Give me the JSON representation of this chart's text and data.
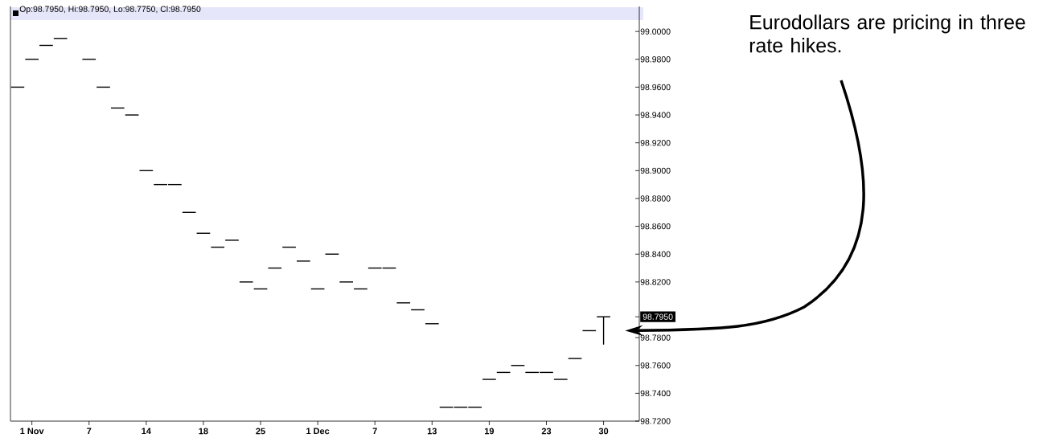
{
  "chart_data": {
    "type": "candlestick",
    "title": "Op:98.7950, Hi:98.7950, Lo:98.7750, Cl:98.7950",
    "categories": [
      null,
      "1 Nov",
      null,
      null,
      null,
      "7",
      null,
      null,
      null,
      "14",
      null,
      null,
      null,
      "18",
      null,
      null,
      null,
      "25",
      null,
      null,
      null,
      "1 Dec",
      null,
      null,
      null,
      "7",
      null,
      null,
      null,
      "13",
      null,
      null,
      null,
      "19",
      null,
      null,
      null,
      "23",
      null,
      null,
      null,
      "30"
    ],
    "ohlc": [
      [
        98.96,
        98.96,
        98.96,
        98.96
      ],
      [
        98.98,
        98.98,
        98.98,
        98.98
      ],
      [
        98.99,
        98.99,
        98.99,
        98.99
      ],
      [
        98.995,
        98.995,
        98.995,
        98.995
      ],
      null,
      [
        98.98,
        98.98,
        98.98,
        98.98
      ],
      [
        98.96,
        98.96,
        98.96,
        98.96
      ],
      [
        98.945,
        98.945,
        98.945,
        98.945
      ],
      [
        98.94,
        98.94,
        98.94,
        98.94
      ],
      [
        98.9,
        98.9,
        98.9,
        98.9
      ],
      [
        98.89,
        98.89,
        98.89,
        98.89
      ],
      [
        98.89,
        98.89,
        98.89,
        98.89
      ],
      [
        98.87,
        98.87,
        98.87,
        98.87
      ],
      [
        98.855,
        98.855,
        98.855,
        98.855
      ],
      [
        98.845,
        98.845,
        98.845,
        98.845
      ],
      [
        98.85,
        98.85,
        98.85,
        98.85
      ],
      [
        98.82,
        98.82,
        98.82,
        98.82
      ],
      [
        98.815,
        98.815,
        98.815,
        98.815
      ],
      [
        98.83,
        98.83,
        98.83,
        98.83
      ],
      [
        98.845,
        98.845,
        98.845,
        98.845
      ],
      [
        98.835,
        98.835,
        98.835,
        98.835
      ],
      [
        98.815,
        98.815,
        98.815,
        98.815
      ],
      [
        98.84,
        98.84,
        98.84,
        98.84
      ],
      [
        98.82,
        98.82,
        98.82,
        98.82
      ],
      [
        98.815,
        98.815,
        98.815,
        98.815
      ],
      [
        98.83,
        98.83,
        98.83,
        98.83
      ],
      [
        98.83,
        98.83,
        98.83,
        98.83
      ],
      [
        98.805,
        98.805,
        98.805,
        98.805
      ],
      [
        98.8,
        98.8,
        98.8,
        98.8
      ],
      [
        98.79,
        98.79,
        98.79,
        98.79
      ],
      [
        98.73,
        98.73,
        98.73,
        98.73
      ],
      [
        98.73,
        98.73,
        98.73,
        98.73
      ],
      [
        98.73,
        98.73,
        98.73,
        98.73
      ],
      [
        98.75,
        98.75,
        98.75,
        98.75
      ],
      [
        98.755,
        98.755,
        98.755,
        98.755
      ],
      [
        98.76,
        98.76,
        98.76,
        98.76
      ],
      [
        98.755,
        98.755,
        98.755,
        98.755
      ],
      [
        98.755,
        98.755,
        98.755,
        98.755
      ],
      [
        98.75,
        98.75,
        98.75,
        98.75
      ],
      [
        98.765,
        98.765,
        98.765,
        98.765
      ],
      [
        98.785,
        98.785,
        98.785,
        98.785
      ],
      [
        98.795,
        98.795,
        98.775,
        98.795
      ]
    ],
    "color": "#000000",
    "ylim": [
      98.72,
      99.018
    ],
    "yticks": [
      {
        "value": 98.72,
        "label": "98.7200"
      },
      {
        "value": 98.74,
        "label": "98.7400"
      },
      {
        "value": 98.76,
        "label": "98.7600"
      },
      {
        "value": 98.78,
        "label": "98.7800"
      },
      {
        "value": 98.795,
        "label": "98.7950"
      },
      {
        "value": 98.82,
        "label": "98.8200"
      },
      {
        "value": 98.84,
        "label": "98.8400"
      },
      {
        "value": 98.86,
        "label": "98.8600"
      },
      {
        "value": 98.88,
        "label": "98.8800"
      },
      {
        "value": 98.9,
        "label": "98.9000"
      },
      {
        "value": 98.92,
        "label": "98.9200"
      },
      {
        "value": 98.94,
        "label": "98.9400"
      },
      {
        "value": 98.96,
        "label": "98.9600"
      },
      {
        "value": 98.98,
        "label": "98.9800"
      },
      {
        "value": 99.0,
        "label": "99.0000"
      }
    ],
    "annotations": [
      "Eurodollars are pricing in three rate hikes."
    ]
  }
}
